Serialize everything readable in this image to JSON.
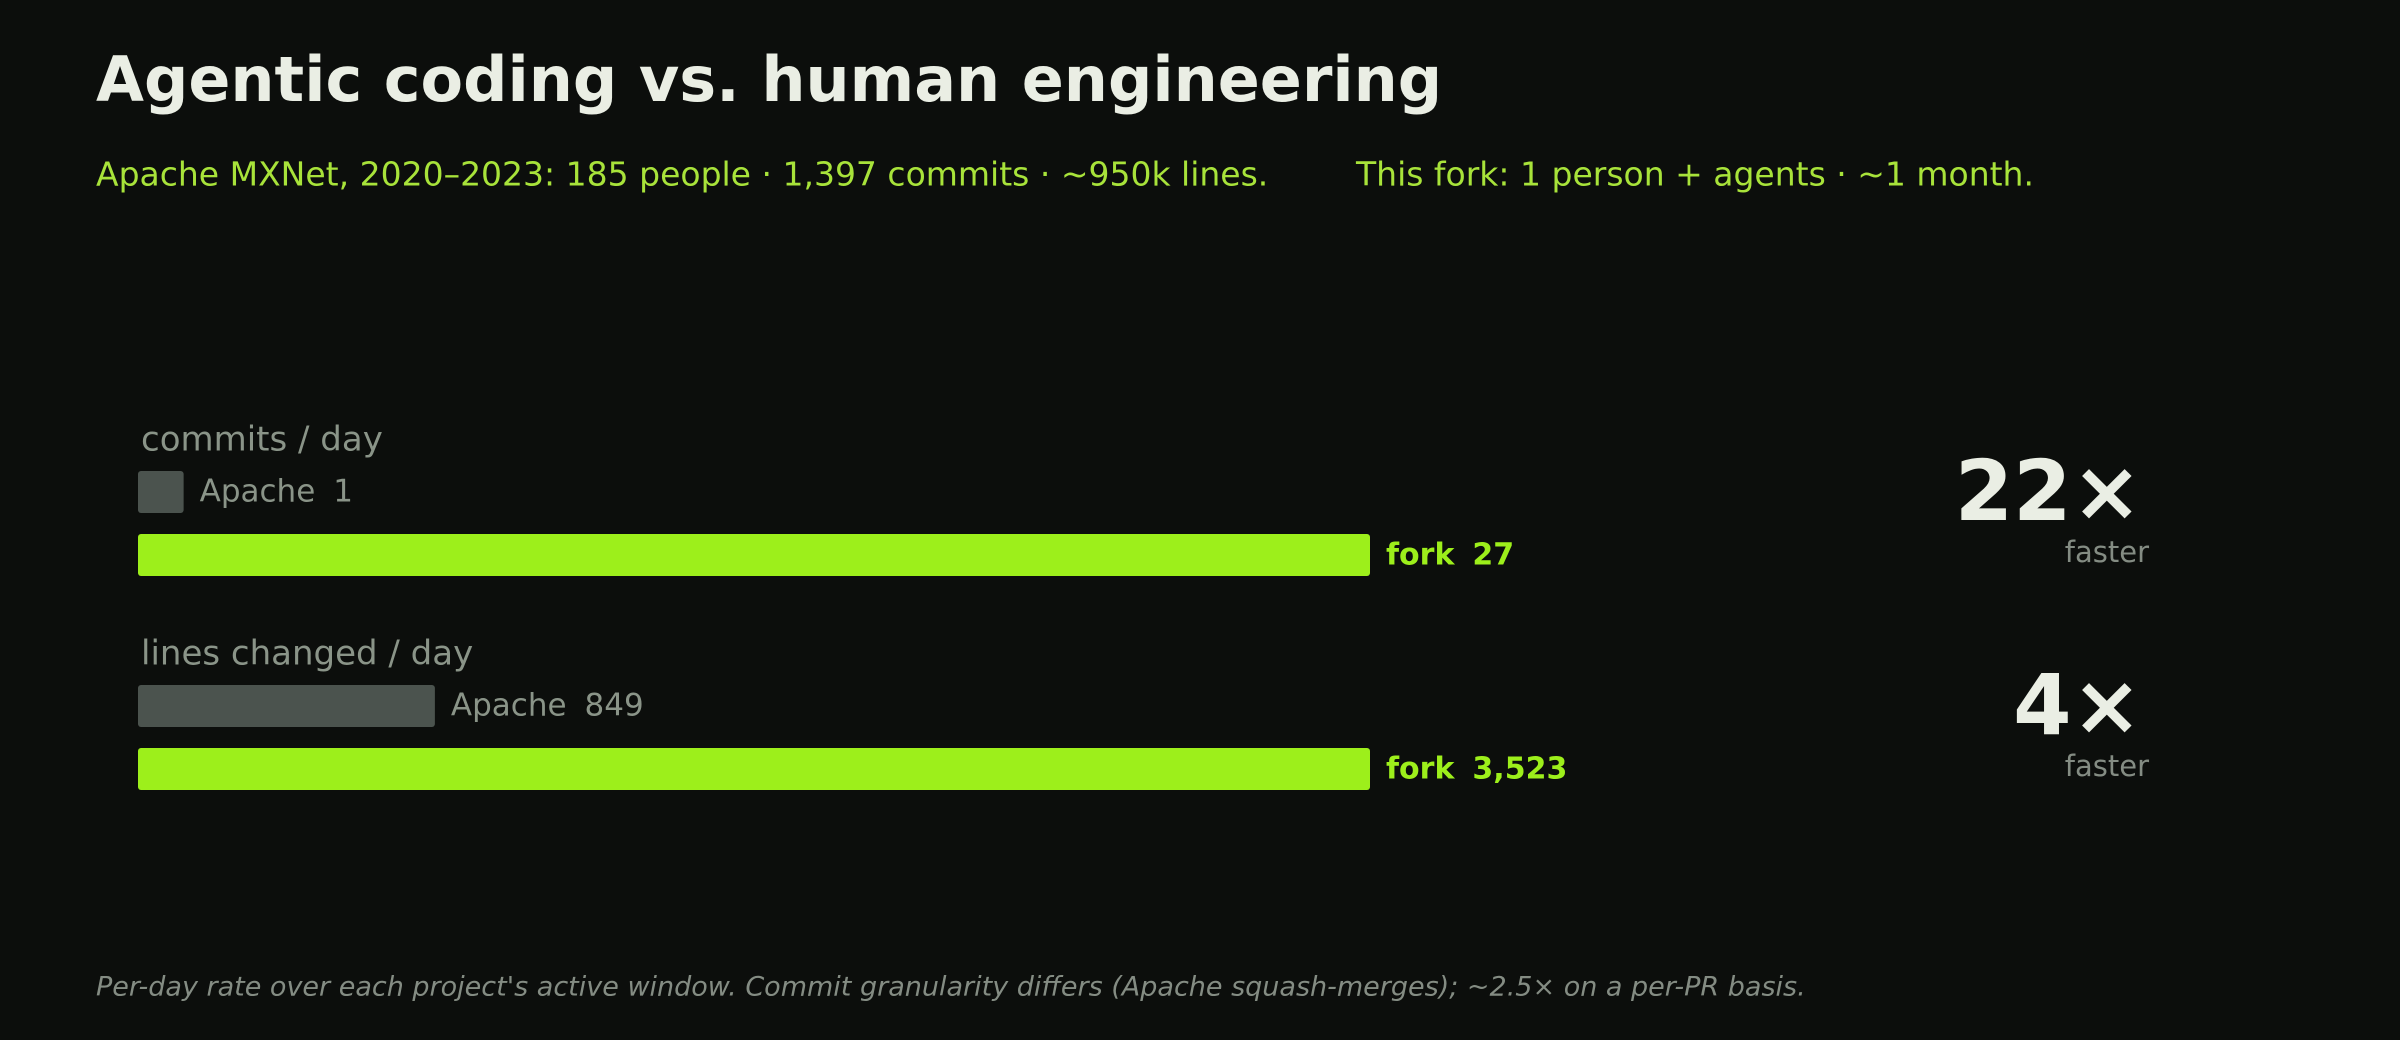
{
  "title": "Agentic coding vs. human engineering",
  "subtitle": [
    "Apache MXNet, 2020–2023:  185 people · 1,397 commits · ~950k lines.",
    "This fork:  1 person + agents · ~1 month."
  ],
  "footnote": "Per-day rate over each project's active window. Commit granularity differs (Apache squash-merges); ~2.5× on a per-PR basis.",
  "chart_data": [
    {
      "type": "bar",
      "orientation": "horizontal",
      "title": "commits / day",
      "series": [
        {
          "name": "Apache",
          "color": "#4b534e",
          "values": [
            1
          ]
        },
        {
          "name": "fork",
          "color": "#9def1b",
          "values": [
            27
          ]
        }
      ],
      "xlim": [
        0,
        27
      ],
      "annotation": {
        "text": "22×",
        "label": "faster"
      }
    },
    {
      "type": "bar",
      "orientation": "horizontal",
      "title": "lines changed / day",
      "series": [
        {
          "name": "Apache",
          "color": "#4b534e",
          "values": [
            849
          ]
        },
        {
          "name": "fork",
          "color": "#9def1b",
          "values": [
            3523
          ],
          "value_labels": [
            "3,523"
          ]
        }
      ],
      "xlim": [
        0,
        3523
      ],
      "annotation": {
        "text": "4×",
        "label": "faster"
      }
    }
  ]
}
